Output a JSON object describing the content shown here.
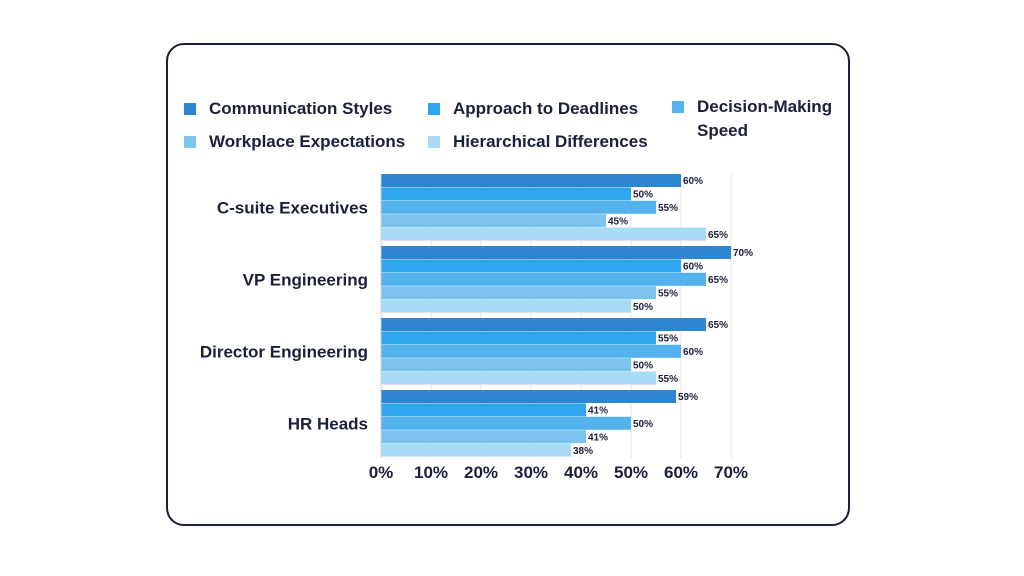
{
  "chart_data": {
    "type": "bar",
    "orientation": "horizontal",
    "categories": [
      "C-suite Executives",
      "VP Engineering",
      "Director Engineering",
      "HR Heads"
    ],
    "series": [
      {
        "name": "Communication Styles",
        "color": "#2e86d1",
        "values": [
          60,
          70,
          65,
          59
        ]
      },
      {
        "name": "Approach to Deadlines",
        "color": "#2fa4ef",
        "values": [
          50,
          60,
          55,
          41
        ]
      },
      {
        "name": "Decision-Making Speed",
        "color": "#54b3ec",
        "values": [
          55,
          65,
          60,
          50
        ]
      },
      {
        "name": "Workplace Expectations",
        "color": "#7cc4ee",
        "values": [
          45,
          55,
          50,
          41
        ]
      },
      {
        "name": "Hierarchical Differences",
        "color": "#a9dbf6",
        "values": [
          65,
          50,
          55,
          38
        ]
      }
    ],
    "data_labels": [
      [
        "60%",
        "70%",
        "65%",
        "59%"
      ],
      [
        "50%",
        "60%",
        "55%",
        "41%"
      ],
      [
        "55%",
        "65%",
        "60%",
        "50%"
      ],
      [
        "45%",
        "55%",
        "50%",
        "41%"
      ],
      [
        "65%",
        "50%",
        "55%",
        "38%"
      ]
    ],
    "xaxis_ticks": [
      "0%",
      "10%",
      "20%",
      "30%",
      "40%",
      "50%",
      "60%",
      "70%"
    ],
    "xlim": [
      0,
      70
    ],
    "title": "",
    "xlabel": "",
    "ylabel": "",
    "legend_position": "top",
    "grid": true
  }
}
